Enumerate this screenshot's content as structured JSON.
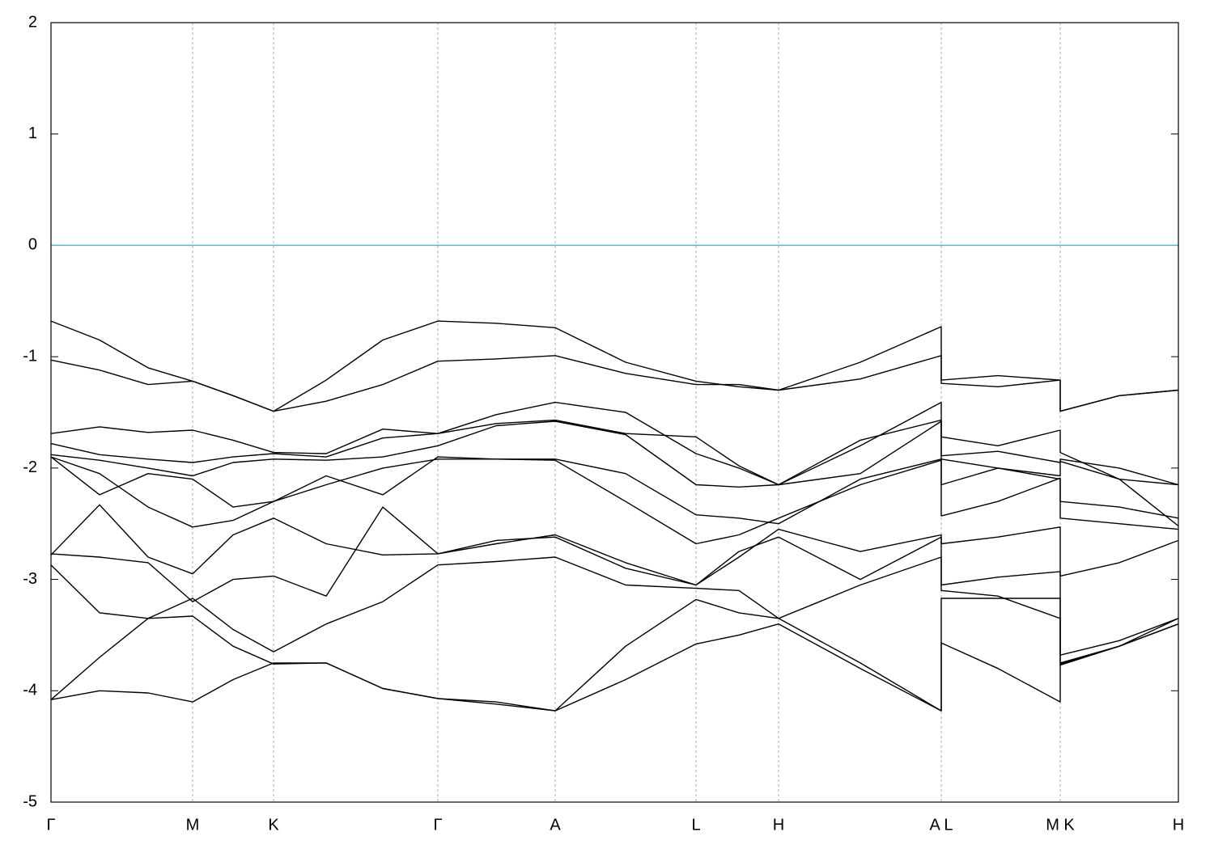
{
  "chart_data": {
    "type": "line",
    "x": [
      0,
      0.6,
      1.2,
      1.75,
      2.25,
      2.75,
      3.4,
      4.1,
      4.78,
      5.5,
      6.23,
      7.1,
      7.97,
      8.5,
      8.99,
      10,
      11,
      11,
      11.7,
      12.47,
      12.47,
      13.2,
      13.93
    ],
    "xlim": [
      0,
      13.93
    ],
    "xticks": [
      {
        "value": 0,
        "label": "Γ"
      },
      {
        "value": 1.75,
        "label": "M"
      },
      {
        "value": 2.75,
        "label": "K"
      },
      {
        "value": 4.78,
        "label": "Γ"
      },
      {
        "value": 6.23,
        "label": "A"
      },
      {
        "value": 7.97,
        "label": "L"
      },
      {
        "value": 8.99,
        "label": "H"
      },
      {
        "value": 11,
        "label": "A L"
      },
      {
        "value": 12.47,
        "label": "M K"
      },
      {
        "value": 13.93,
        "label": "H"
      }
    ],
    "ylim": [
      -5,
      2
    ],
    "yticks": [
      2,
      1,
      0,
      -1,
      -2,
      -3,
      -4,
      -5
    ],
    "xgrid": true,
    "color": "#000000",
    "hline": 0,
    "hline_color": "#5fb3cf",
    "series": [
      {
        "values": [
          -0.68,
          -0.85,
          -1.1,
          -1.22,
          -1.35,
          -1.49,
          -1.21,
          -0.85,
          -0.68,
          -0.7,
          -0.74,
          -1.05,
          -1.22,
          -1.27,
          -1.3,
          -1.05,
          -0.73,
          -1.21,
          -1.17,
          -1.21,
          -1.49,
          -1.35,
          -1.3
        ]
      },
      {
        "values": [
          -1.03,
          -1.12,
          -1.25,
          -1.22,
          -1.35,
          -1.49,
          -1.4,
          -1.25,
          -1.04,
          -1.02,
          -0.99,
          -1.15,
          -1.25,
          -1.25,
          -1.3,
          -1.2,
          -0.99,
          -1.24,
          -1.27,
          -1.21,
          -1.49,
          -1.35,
          -1.3
        ]
      },
      {
        "values": [
          -1.69,
          -1.63,
          -1.68,
          -1.66,
          -1.75,
          -1.86,
          -1.87,
          -1.65,
          -1.69,
          -1.6,
          -1.57,
          -1.69,
          -1.72,
          -1.98,
          -2.15,
          -1.8,
          -1.41,
          -1.72,
          -1.8,
          -1.66,
          -1.86,
          -2.1,
          -2.52
        ]
      },
      {
        "values": [
          -1.78,
          -1.88,
          -1.92,
          -1.95,
          -1.9,
          -1.87,
          -1.9,
          -1.73,
          -1.69,
          -1.52,
          -1.41,
          -1.5,
          -1.87,
          -2.0,
          -2.15,
          -1.75,
          -1.57,
          -1.89,
          -1.85,
          -1.95,
          -1.92,
          -2.0,
          -2.15
        ]
      },
      {
        "values": [
          -1.88,
          -1.93,
          -2.0,
          -2.07,
          -1.95,
          -1.92,
          -1.93,
          -1.9,
          -1.8,
          -1.62,
          -1.58,
          -1.7,
          -2.15,
          -2.17,
          -2.15,
          -2.05,
          -1.58,
          -1.92,
          -2.0,
          -2.07,
          -1.94,
          -2.1,
          -2.15
        ]
      },
      {
        "values": [
          -1.9,
          -2.24,
          -2.05,
          -2.1,
          -2.35,
          -2.3,
          -2.07,
          -2.24,
          -1.9,
          -1.92,
          -1.92,
          -2.05,
          -2.42,
          -2.45,
          -2.5,
          -2.1,
          -1.92,
          -2.15,
          -2.0,
          -2.1,
          -2.3,
          -2.35,
          -2.45
        ]
      },
      {
        "values": [
          -1.9,
          -2.05,
          -2.35,
          -2.53,
          -2.47,
          -2.3,
          -2.15,
          -2.0,
          -1.92,
          -1.92,
          -1.93,
          -2.3,
          -2.68,
          -2.6,
          -2.45,
          -2.15,
          -1.93,
          -2.43,
          -2.3,
          -2.09,
          -2.45,
          -2.5,
          -2.55
        ]
      },
      {
        "values": [
          -2.78,
          -2.33,
          -2.8,
          -2.95,
          -2.6,
          -2.45,
          -2.68,
          -2.78,
          -2.77,
          -2.68,
          -2.6,
          -2.85,
          -3.05,
          -2.75,
          -2.62,
          -3.0,
          -2.62,
          -2.68,
          -2.62,
          -2.53,
          -2.97,
          -2.85,
          -2.65
        ]
      },
      {
        "values": [
          -2.77,
          -2.8,
          -2.85,
          -3.2,
          -3.0,
          -2.97,
          -3.15,
          -2.35,
          -2.77,
          -2.65,
          -2.62,
          -2.9,
          -3.05,
          -2.8,
          -2.55,
          -2.75,
          -2.6,
          -3.05,
          -2.98,
          -2.93,
          -3.68,
          -3.55,
          -3.35
        ]
      },
      {
        "values": [
          -2.87,
          -3.3,
          -3.35,
          -3.17,
          -3.45,
          -3.65,
          -3.4,
          -3.2,
          -2.87,
          -2.84,
          -2.8,
          -3.05,
          -3.08,
          -3.1,
          -3.35,
          -3.05,
          -2.8,
          -3.1,
          -3.15,
          -3.35,
          -3.75,
          -3.6,
          -3.4
        ]
      },
      {
        "values": [
          -4.08,
          -3.7,
          -3.35,
          -3.33,
          -3.6,
          -3.76,
          -3.75,
          -3.98,
          -4.07,
          -4.1,
          -4.18,
          -3.6,
          -3.18,
          -3.3,
          -3.35,
          -3.75,
          -4.18,
          -3.17,
          -3.17,
          -3.17,
          -3.77,
          -3.6,
          -3.35
        ]
      },
      {
        "values": [
          -4.08,
          -4.0,
          -4.02,
          -4.1,
          -3.9,
          -3.75,
          -3.75,
          -3.98,
          -4.07,
          -4.12,
          -4.18,
          -3.9,
          -3.58,
          -3.5,
          -3.4,
          -3.8,
          -4.18,
          -3.57,
          -3.8,
          -4.1,
          -3.76,
          -3.6,
          -3.4
        ]
      }
    ]
  }
}
